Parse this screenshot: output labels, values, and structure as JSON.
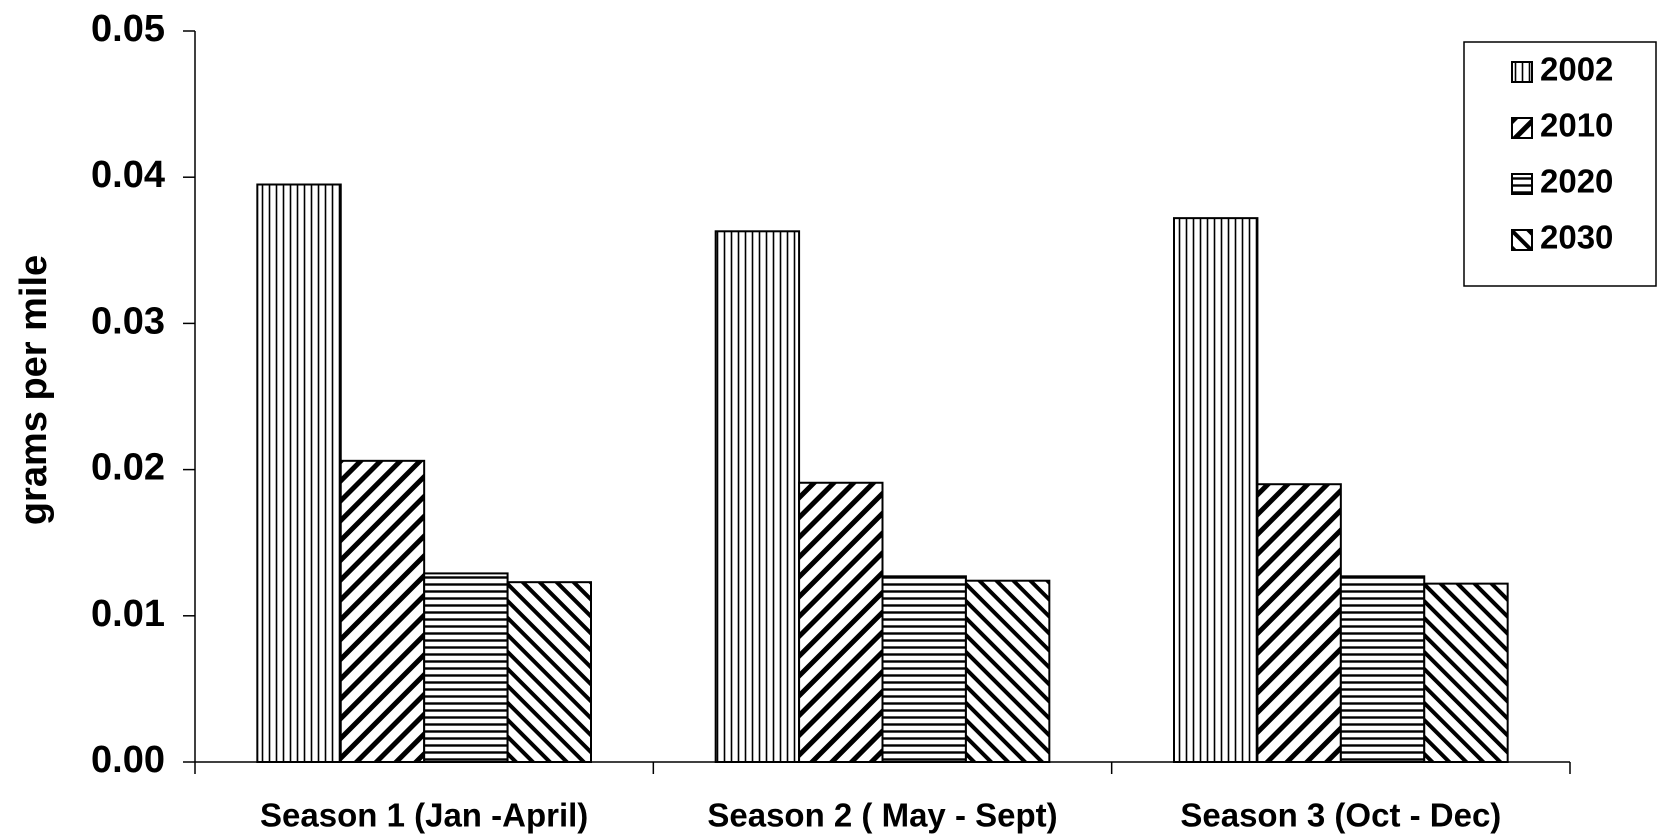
{
  "chart_data": {
    "type": "bar",
    "ylabel": "grams per mile",
    "categories": [
      "Season 1  (Jan -April)",
      "Season 2 ( May - Sept)",
      "Season 3 (Oct - Dec)"
    ],
    "series": [
      {
        "name": "2002",
        "color": "#000000",
        "pattern": "vertical",
        "values": [
          0.0395,
          0.0363,
          0.0372
        ]
      },
      {
        "name": "2010",
        "color": "#000000",
        "pattern": "backslash",
        "values": [
          0.0206,
          0.0191,
          0.019
        ]
      },
      {
        "name": "2020",
        "color": "#000000",
        "pattern": "horizontal",
        "values": [
          0.0129,
          0.0127,
          0.0127
        ]
      },
      {
        "name": "2030",
        "color": "#000000",
        "pattern": "slash",
        "values": [
          0.0123,
          0.0124,
          0.0122
        ]
      }
    ],
    "ylim": [
      0,
      0.05
    ],
    "yticks": [
      {
        "value": 0,
        "label": "0.00"
      },
      0.01,
      0.02,
      0.03,
      0.04,
      0.05
    ],
    "grid": false,
    "legend": "upper right"
  }
}
